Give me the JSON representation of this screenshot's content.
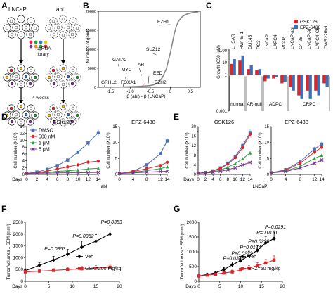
{
  "panels": {
    "A": {
      "letter": "A",
      "cell_line_left": "LNCaP",
      "cell_line_right": "abl",
      "library_label_1": "sgRNA",
      "library_label_2": "library",
      "time_label": "4 weeks"
    },
    "B": {
      "letter": "B",
      "chart_data": {
        "type": "line",
        "ylabel": "Numbers of genes",
        "xlabel": "β (abl) - β (LNCaP)",
        "xlim": [
          -1.8,
          0.75
        ],
        "ylim": [
          0,
          20000
        ],
        "xticks": [
          "-1.5",
          "-1.0",
          "-0.5",
          "0",
          "0.5"
        ],
        "xtick_values": [
          -1.5,
          -1.0,
          -0.5,
          0,
          0.5
        ],
        "yticks": [
          "0",
          "5000",
          "10000",
          "15000",
          "20000"
        ],
        "ytick_values": [
          0,
          5000,
          10000,
          15000,
          20000
        ],
        "curve": {
          "x": [
            -1.75,
            -1.5,
            -1.3,
            -1.1,
            -0.9,
            -0.7,
            -0.5,
            -0.4,
            -0.3,
            -0.2,
            -0.1,
            0,
            0.05,
            0.1,
            0.15,
            0.2,
            0.3,
            0.4,
            0.5,
            0.6,
            0.7
          ],
          "y": [
            0,
            10,
            40,
            90,
            160,
            260,
            450,
            700,
            1300,
            2500,
            4800,
            9000,
            11500,
            14000,
            16000,
            17300,
            18600,
            19200,
            19500,
            19700,
            19800
          ]
        },
        "annotations": [
          {
            "label": "EZH1",
            "x": 0.0,
            "y": 16500
          },
          {
            "label": "SUZ12",
            "x": -0.35,
            "y": 8500
          },
          {
            "label": "GATA2",
            "x": -1.28,
            "y": 5200
          },
          {
            "label": "AR",
            "x": -0.72,
            "y": 3100
          },
          {
            "label": "MYC",
            "x": -1.12,
            "y": 2300
          },
          {
            "label": "EED",
            "x": -0.55,
            "y": 1000
          },
          {
            "label": "GRHL2",
            "x": -1.65,
            "y": 0
          },
          {
            "label": "FOXA1",
            "x": -1.18,
            "y": 0
          },
          {
            "label": "EZH2",
            "x": -0.72,
            "y": 0
          }
        ],
        "highlight": {
          "label": "EZH2",
          "color": "#e0282e"
        }
      }
    },
    "C": {
      "letter": "C",
      "chart_data": {
        "type": "bar",
        "ylabel": "Growth IC50 (μM)",
        "yscale": "log",
        "ylim": [
          0.001,
          100
        ],
        "yticks": [
          "0.001",
          "0.01",
          "0.1",
          "1",
          "10",
          "100"
        ],
        "ytick_values": [
          0.001,
          0.01,
          0.1,
          1,
          10,
          100
        ],
        "categories": [
          "LHSAR",
          "RWPE-1",
          "DU145",
          "PC3",
          "LNCaP",
          "LAPC4",
          "VCaP",
          "LNCaP-abl",
          "C4-2B",
          "LNCaP-AI",
          "LAPC4-CR",
          "CWR22Rv1"
        ],
        "groups": [
          {
            "label": "normal",
            "from": 0,
            "to": 1
          },
          {
            "label": "AR-null",
            "from": 2,
            "to": 3
          },
          {
            "label": "ADPC",
            "from": 4,
            "to": 6
          },
          {
            "label": "CRPC",
            "from": 7,
            "to": 11
          }
        ],
        "series": [
          {
            "name": "GSK126",
            "color": "#d7282f",
            "values": [
              8,
              15,
              3,
              2.5,
              0.3,
              0.5,
              0.2,
              0.1,
              0.02,
              0.05,
              0.05,
              0.2
            ]
          },
          {
            "name": "EPZ-6438",
            "color": "#3f70b8",
            "values": [
              20,
              40,
              6,
              3,
              0.5,
              0.7,
              0.25,
              0.05,
              0.01,
              0.01,
              0.02,
              0.1
            ]
          }
        ],
        "legend": "top-right"
      }
    },
    "D": {
      "letter": "D",
      "chart_data": [
        {
          "type": "line",
          "title": "GSK126",
          "ylabel": "Cell number (X10⁶)",
          "xlabel": "Days",
          "x": [
            0,
            2,
            4,
            6,
            8,
            10,
            12,
            14
          ],
          "ylim": [
            0,
            14
          ],
          "yticks": [
            "0",
            "2",
            "4",
            "6",
            "8",
            "10",
            "12",
            "14"
          ],
          "ytick_values": [
            0,
            2,
            4,
            6,
            8,
            10,
            12,
            14
          ],
          "xticks": [
            "0",
            "2",
            "4",
            "6",
            "8",
            "10",
            "12",
            "14"
          ],
          "series": [
            {
              "name": "DMSO",
              "color": "#4a6fb3",
              "marker": "square",
              "values": [
                0.3,
                0.7,
                1.5,
                2.6,
                4.2,
                6.5,
                9.2,
                12.2
              ]
            },
            {
              "name": "500 nM",
              "color": "#d7282f",
              "marker": "circle",
              "values": [
                0.3,
                0.5,
                1.0,
                1.6,
                2.2,
                2.8,
                3.6,
                3.9
              ]
            },
            {
              "name": "1 μM",
              "color": "#2f9e44",
              "marker": "triangle",
              "values": [
                0.3,
                0.4,
                0.6,
                0.9,
                1.1,
                1.3,
                1.6,
                1.8
              ]
            },
            {
              "name": "5 μM",
              "color": "#7b3294",
              "marker": "cross",
              "values": [
                0.3,
                0.35,
                0.4,
                0.45,
                0.5,
                0.5,
                0.55,
                0.6
              ]
            }
          ]
        },
        {
          "type": "line",
          "title": "EPZ-6438",
          "ylabel": "Cell number (X10⁶)",
          "xlabel": "",
          "x": [
            0,
            4,
            8,
            12,
            14
          ],
          "ylim": [
            0,
            15
          ],
          "yticks": [
            "0",
            "5",
            "10",
            "15"
          ],
          "ytick_values": [
            0,
            5,
            10,
            15
          ],
          "xticks": [
            "0",
            "4",
            "8",
            "12",
            "14"
          ],
          "series": [
            {
              "name": "DMSO",
              "color": "#4a6fb3",
              "marker": "square",
              "values": [
                0.3,
                1.0,
                3.0,
                6.5,
                10.5
              ]
            },
            {
              "name": "500 nM",
              "color": "#d7282f",
              "marker": "circle",
              "values": [
                0.3,
                0.9,
                1.8,
                2.8,
                3.8
              ]
            },
            {
              "name": "1 μM",
              "color": "#2f9e44",
              "marker": "triangle",
              "values": [
                0.3,
                0.7,
                1.2,
                1.8,
                2.4
              ]
            },
            {
              "name": "5 μM",
              "color": "#7b3294",
              "marker": "cross",
              "values": [
                0.3,
                0.5,
                0.7,
                0.9,
                1.0
              ]
            }
          ]
        }
      ],
      "cell_line": "abl"
    },
    "E": {
      "letter": "E",
      "chart_data": [
        {
          "type": "line",
          "title": "GSK126",
          "ylabel": "Cell number (X10⁶)",
          "xlabel": "Days",
          "x": [
            0,
            2,
            4,
            6,
            8,
            10,
            12,
            14
          ],
          "ylim": [
            0,
            20
          ],
          "yticks": [
            "0",
            "2",
            "4",
            "6",
            "8",
            "10",
            "12",
            "14",
            "16",
            "18",
            "20"
          ],
          "ytick_values": [
            0,
            2,
            4,
            6,
            8,
            10,
            12,
            14,
            16,
            18,
            20
          ],
          "xticks": [
            "0",
            "2",
            "4",
            "6",
            "8",
            "10",
            "12",
            "14"
          ],
          "series": [
            {
              "name": "DMSO",
              "color": "#4a6fb3",
              "marker": "square",
              "values": [
                0.5,
                0.8,
                1.5,
                2.7,
                4.7,
                7.6,
                12.0,
                17.5
              ]
            },
            {
              "name": "500 nM",
              "color": "#d7282f",
              "marker": "circle",
              "values": [
                0.5,
                0.8,
                1.4,
                2.5,
                4.3,
                7.0,
                11.2,
                16.8
              ]
            },
            {
              "name": "1 μM",
              "color": "#2f9e44",
              "marker": "triangle",
              "values": [
                0.5,
                0.7,
                1.1,
                1.8,
                3.0,
                4.5,
                6.5,
                9.0
              ]
            },
            {
              "name": "5 μM",
              "color": "#7b3294",
              "marker": "cross",
              "values": [
                0.5,
                0.6,
                0.9,
                1.3,
                2.0,
                2.8,
                4.0,
                5.0
              ]
            }
          ]
        },
        {
          "type": "line",
          "title": "EPZ-6438",
          "ylabel": "Cell number (X10⁶)",
          "xlabel": "",
          "x": [
            0,
            4,
            8,
            12,
            14
          ],
          "ylim": [
            0,
            15
          ],
          "yticks": [
            "0",
            "5",
            "10",
            "15"
          ],
          "ytick_values": [
            0,
            5,
            10,
            15
          ],
          "xticks": [
            "0",
            "4",
            "8",
            "12",
            "14"
          ],
          "series": [
            {
              "name": "DMSO",
              "color": "#4a6fb3",
              "marker": "square",
              "values": [
                0.5,
                1.5,
                4.0,
                8.0,
                9.5
              ]
            },
            {
              "name": "500 nM",
              "color": "#d7282f",
              "marker": "circle",
              "values": [
                0.5,
                1.3,
                3.5,
                7.0,
                8.5
              ]
            },
            {
              "name": "1 μM",
              "color": "#2f9e44",
              "marker": "triangle",
              "values": [
                0.5,
                1.1,
                2.5,
                5.0,
                6.0
              ]
            },
            {
              "name": "5 μM",
              "color": "#7b3294",
              "marker": "cross",
              "values": [
                0.5,
                0.9,
                2.0,
                3.5,
                4.5
              ]
            }
          ]
        }
      ],
      "cell_line": "LNCaP"
    },
    "F": {
      "letter": "F",
      "chart_data": {
        "type": "line",
        "ylabel": "Tumor Volumes ± SEM (mm³)",
        "xlabel": "Days",
        "xlim": [
          0,
          20
        ],
        "ylim": [
          0,
          2500
        ],
        "xticks": [
          "0",
          "5",
          "10",
          "15",
          "20"
        ],
        "xtick_values": [
          0,
          5,
          10,
          15,
          20
        ],
        "yticks": [
          "0",
          "500",
          "1000",
          "1500",
          "2000",
          "2500"
        ],
        "ytick_values": [
          0,
          500,
          1000,
          1500,
          2000,
          2500
        ],
        "series": [
          {
            "name": "Veh",
            "color": "#000000",
            "marker": "diamond",
            "x": [
              0,
              3,
              6,
              9,
              12,
              15,
              18
            ],
            "values": [
              450,
              680,
              900,
              1150,
              1450,
              1700,
              2000
            ],
            "err": [
              80,
              120,
              160,
              200,
              250,
              280,
              350
            ]
          },
          {
            "name": "GSK=200 mg/kg",
            "color": "#d7282f",
            "marker": "square",
            "x": [
              0,
              3,
              6,
              9,
              12,
              15,
              18
            ],
            "values": [
              400,
              430,
              460,
              500,
              530,
              560,
              600
            ],
            "err": [
              60,
              70,
              80,
              90,
              100,
              110,
              120
            ]
          }
        ],
        "annotations": [
          {
            "label": "P=0.0353",
            "x": 6
          },
          {
            "label": "P=0.0862",
            "x": 12
          },
          {
            "label": "P=0.0353",
            "x": 18
          }
        ]
      }
    },
    "G": {
      "letter": "G",
      "chart_data": {
        "type": "line",
        "ylabel": "Tumor Volumes ± SEM (mm³)",
        "xlabel": "Days",
        "xlim": [
          0,
          20
        ],
        "ylim": [
          0,
          2000
        ],
        "xticks": [
          "0",
          "5",
          "10",
          "15",
          "20"
        ],
        "xtick_values": [
          0,
          5,
          10,
          15,
          20
        ],
        "yticks": [
          "0",
          "500",
          "1000",
          "1500",
          "2000"
        ],
        "ytick_values": [
          0,
          500,
          1000,
          1500,
          2000
        ],
        "series": [
          {
            "name": "Veh",
            "color": "#000000",
            "marker": "diamond",
            "x": [
              0,
              2,
              4,
              6,
              8,
              10,
              12,
              14,
              16,
              18
            ],
            "values": [
              180,
              230,
              290,
              400,
              560,
              700,
              870,
              1050,
              1300,
              1450
            ],
            "err": [
              30,
              40,
              50,
              70,
              90,
              120,
              150,
              180,
              220,
              260
            ]
          },
          {
            "name": "EPZ=50 mg/kg",
            "color": "#d7282f",
            "marker": "square",
            "x": [
              0,
              2,
              4,
              6,
              8,
              10,
              12,
              14,
              16,
              18
            ],
            "values": [
              180,
              210,
              240,
              280,
              320,
              380,
              450,
              530,
              620,
              720
            ],
            "err": [
              30,
              35,
              40,
              50,
              60,
              70,
              80,
              100,
              120,
              140
            ]
          }
        ],
        "annotations": [
          {
            "label": "P=0.0386",
            "x": 8
          },
          {
            "label": "P=0.0222",
            "x": 10
          },
          {
            "label": "P=0.0174",
            "x": 12
          },
          {
            "label": "P=0.0298",
            "x": 14
          },
          {
            "label": "P=0.0151",
            "x": 16
          },
          {
            "label": "P=0.0291",
            "x": 18
          }
        ]
      }
    }
  }
}
